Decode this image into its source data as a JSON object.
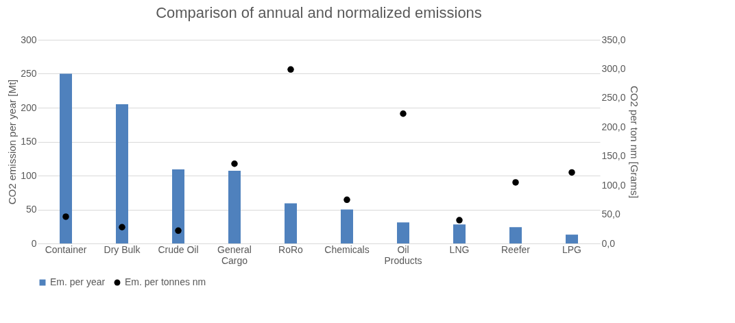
{
  "chart_data": {
    "type": "bar",
    "title": "Comparison of annual and normalized emissions",
    "ylabel": "CO2 emission per year [Mt]",
    "y2label": "CO2 per ton nm [Grams]",
    "categories": [
      "Container",
      "Dry Bulk",
      "Crude Oil",
      "General Cargo",
      "RoRo",
      "Chemicals",
      "Oil Products",
      "LNG",
      "Reefer",
      "LPG"
    ],
    "series": [
      {
        "name": "Em. per year",
        "color": "#4f81bd",
        "values": [
          250,
          205,
          109,
          107,
          59,
          50,
          31,
          28,
          24,
          13
        ]
      },
      {
        "name": "Em. per tonnes nm",
        "type": "scatter",
        "axis": "y2",
        "marker": "circle",
        "color": "#000000",
        "values": [
          46,
          28,
          22,
          137,
          299,
          75,
          223,
          40,
          105,
          122
        ]
      }
    ],
    "ylim": [
      0,
      300
    ],
    "yticks": [
      0,
      50,
      100,
      150,
      200,
      250,
      300
    ],
    "y2lim": [
      0,
      350
    ],
    "y2ticks": [
      {
        "value": 0,
        "label": "0,0"
      },
      {
        "value": 50,
        "label": "50,0"
      },
      {
        "value": 100,
        "label": "100,0"
      },
      {
        "value": 150,
        "label": "150,0"
      },
      {
        "value": 200,
        "label": "200,0"
      },
      {
        "value": 250,
        "label": "250,0"
      },
      {
        "value": 300,
        "label": "300,0"
      },
      {
        "value": 350,
        "label": "350,0"
      }
    ],
    "grid": "y",
    "legend": "bottom"
  }
}
